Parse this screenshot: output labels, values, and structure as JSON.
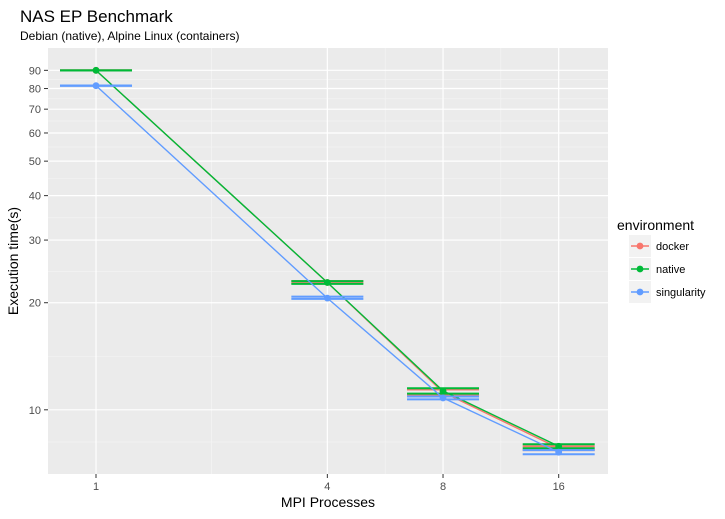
{
  "chart_data": {
    "type": "line",
    "title": "NAS EP Benchmark",
    "subtitle": "Debian (native), Alpine Linux (containers)",
    "xlabel": "MPI Processes",
    "ylabel": "Execution time(s)",
    "x_scale": "log2",
    "y_scale": "log",
    "x_ticks": [
      1,
      4,
      8,
      16
    ],
    "y_ticks": [
      10,
      20,
      30,
      40,
      50,
      60,
      70,
      80,
      90
    ],
    "xlim": [
      0.75,
      21.5
    ],
    "ylim": [
      6.6,
      104
    ],
    "grid": true,
    "legend": {
      "title": "environment",
      "position": "right"
    },
    "series": [
      {
        "name": "docker",
        "color": "#F8766D",
        "x": [
          1,
          4,
          8,
          16
        ],
        "y": [
          90,
          22.8,
          11.2,
          7.8
        ],
        "ymin": [
          90,
          22.7,
          11.0,
          7.7
        ],
        "ymax": [
          90,
          23.0,
          11.4,
          7.9
        ]
      },
      {
        "name": "native",
        "color": "#00BA38",
        "x": [
          1,
          4,
          8,
          16
        ],
        "y": [
          90,
          22.8,
          11.3,
          7.9
        ],
        "ymin": [
          90,
          22.6,
          11.1,
          7.8
        ],
        "ymax": [
          90,
          23.0,
          11.5,
          8.0
        ]
      },
      {
        "name": "singularity",
        "color": "#619CFF",
        "x": [
          1,
          4,
          8,
          16
        ],
        "y": [
          81.5,
          20.6,
          10.8,
          7.6
        ],
        "ymin": [
          81.4,
          20.5,
          10.7,
          7.5
        ],
        "ymax": [
          81.6,
          20.8,
          10.9,
          7.7
        ]
      }
    ]
  }
}
